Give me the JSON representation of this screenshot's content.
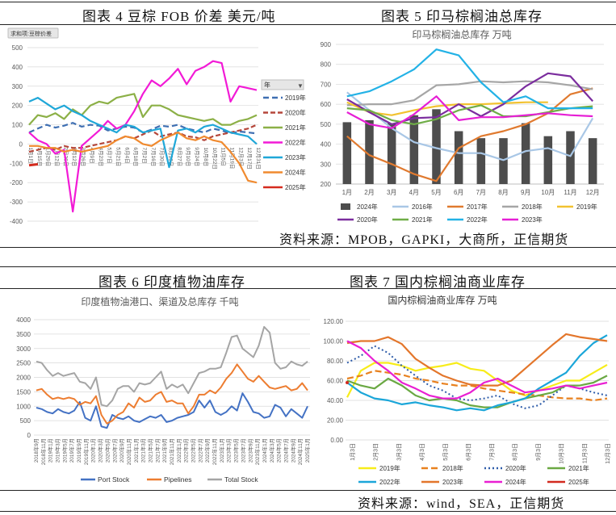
{
  "captions": {
    "fig4": "图表 4 豆棕 FOB 价差 美元/吨",
    "fig5": "图表 5 印马棕榈油总库存",
    "fig6": "图表 6 印度植物油库存",
    "fig7": "图表 7 国内棕榈油商业库存"
  },
  "sources": {
    "top": "资料来源：MPOB，GAPKI，大商所，正信期货",
    "bottom": "资料来源：wind，SEA，正信期货"
  },
  "chart_data": [
    {
      "id": "fig4",
      "type": "line",
      "title": "",
      "field_button": "求和项:豆棕价差",
      "legend_header": "年",
      "ylim": [
        -400,
        500
      ],
      "yticks": [
        "500",
        "400",
        "300",
        "200",
        "100",
        "0",
        "-100",
        "-200",
        "-300",
        "-400"
      ],
      "xlabels": [
        "1月1日",
        "1月15日",
        "1月29日",
        "2月12日",
        "2月26日",
        "3月12日",
        "3月26日",
        "4月9日",
        "4月23日",
        "5月7日",
        "5月21日",
        "6月4日",
        "6月18日",
        "7月2日",
        "7月16日",
        "7月30日",
        "8月13日",
        "8月27日",
        "9月10日",
        "9月24日",
        "10月8日",
        "10月22日",
        "11月5日",
        "11月19日",
        "12月3日",
        "12月17日",
        "12月31日"
      ],
      "series": [
        {
          "name": "2019年",
          "color": "#3f6fb2",
          "dash": "7,4",
          "values": [
            60,
            80,
            100,
            85,
            95,
            110,
            90,
            100,
            95,
            70,
            80,
            90,
            85,
            60,
            75,
            95,
            90,
            100,
            80,
            70,
            60,
            80,
            70,
            55,
            65,
            60,
            55
          ]
        },
        {
          "name": "2020年",
          "color": "#b5473b",
          "dash": "6,3",
          "values": [
            -40,
            -30,
            -20,
            -30,
            -10,
            -20,
            -20,
            -10,
            0,
            10,
            20,
            40,
            30,
            50,
            70,
            40,
            50,
            60,
            40,
            35,
            20,
            40,
            50,
            60,
            70,
            80,
            100
          ]
        },
        {
          "name": "2021年",
          "color": "#8cb047",
          "dash": "",
          "values": [
            100,
            150,
            140,
            160,
            130,
            180,
            150,
            200,
            220,
            210,
            240,
            250,
            260,
            140,
            200,
            200,
            180,
            150,
            140,
            130,
            120,
            130,
            100,
            100,
            120,
            130,
            150
          ]
        },
        {
          "name": "2022年",
          "color": "#f21ad6",
          "dash": "",
          "values": [
            60,
            20,
            0,
            -50,
            -30,
            -350,
            -10,
            30,
            70,
            120,
            80,
            100,
            170,
            260,
            330,
            300,
            340,
            390,
            310,
            380,
            400,
            430,
            420,
            220,
            300,
            290,
            280
          ]
        },
        {
          "name": "2023年",
          "color": "#1fa7d8",
          "dash": "",
          "values": [
            220,
            240,
            210,
            180,
            200,
            170,
            150,
            120,
            100,
            80,
            60,
            100,
            90,
            60,
            70,
            80,
            -120,
            70,
            80,
            60,
            90,
            100,
            80,
            60,
            50,
            40,
            0
          ]
        },
        {
          "name": "2024年",
          "color": "#f08a2f",
          "dash": "",
          "values": [
            -10,
            -10,
            -20,
            -20,
            -40,
            -30,
            -40,
            -30,
            -20,
            -10,
            20,
            40,
            30,
            0,
            -10,
            20,
            40,
            60,
            30,
            20,
            40,
            20,
            10,
            -40,
            -100,
            -190,
            -200
          ]
        },
        {
          "name": "2025年",
          "color": "#d52b1e",
          "dash": "",
          "values": [
            -110,
            -105,
            null,
            null,
            null,
            null,
            null,
            null,
            null,
            null,
            null,
            null,
            null,
            null,
            null,
            null,
            null,
            null,
            null,
            null,
            null,
            null,
            null,
            null,
            null,
            null,
            null
          ]
        }
      ]
    },
    {
      "id": "fig5",
      "type": "bar+line",
      "title": "印马棕榈油总库存 万吨",
      "ylim": [
        200,
        900
      ],
      "yticks": [
        "900",
        "800",
        "700",
        "600",
        "500",
        "400",
        "300",
        "200"
      ],
      "categories": [
        "1月",
        "2月",
        "3月",
        "4月",
        "5月",
        "6月",
        "7月",
        "8月",
        "9月",
        "10月",
        "11月",
        "12月"
      ],
      "bars": {
        "name": "2024年",
        "color": "#4d4d4d",
        "values": [
          510,
          520,
          505,
          545,
          575,
          465,
          430,
          430,
          505,
          440,
          465,
          430
        ]
      },
      "series": [
        {
          "name": "2016年",
          "color": "#a9c7e6",
          "values": [
            660,
            570,
            480,
            410,
            380,
            355,
            355,
            320,
            365,
            380,
            340,
            530
          ]
        },
        {
          "name": "2017年",
          "color": "#e07a2f",
          "values": [
            440,
            345,
            300,
            250,
            215,
            380,
            440,
            465,
            500,
            555,
            650,
            680
          ]
        },
        {
          "name": "2018年",
          "color": "#a6a6a6",
          "values": [
            595,
            600,
            600,
            620,
            695,
            700,
            715,
            710,
            715,
            710,
            695,
            675
          ]
        },
        {
          "name": "2019年",
          "color": "#f2c230",
          "values": [
            610,
            560,
            545,
            570,
            590,
            600,
            600,
            605,
            610,
            610,
            null,
            null
          ]
        },
        {
          "name": "2020年",
          "color": "#7b2d9e",
          "values": [
            625,
            560,
            500,
            530,
            535,
            600,
            540,
            600,
            690,
            755,
            740,
            615
          ]
        },
        {
          "name": "2021年",
          "color": "#6fad47",
          "values": [
            580,
            570,
            520,
            500,
            525,
            570,
            595,
            540,
            540,
            560,
            580,
            590
          ]
        },
        {
          "name": "2022年",
          "color": "#23b2e6",
          "values": [
            640,
            665,
            715,
            775,
            875,
            845,
            710,
            610,
            640,
            580,
            580,
            580
          ]
        },
        {
          "name": "2023年",
          "color": "#e61fd5",
          "values": [
            560,
            500,
            480,
            550,
            640,
            520,
            535,
            535,
            545,
            555,
            545,
            540
          ]
        }
      ]
    },
    {
      "id": "fig6",
      "type": "line",
      "title": "印度植物油港口、渠道及总库存 千吨",
      "ylim": [
        0,
        4000
      ],
      "yticks": [
        "4000",
        "3500",
        "3000",
        "2500",
        "2000",
        "1500",
        "1000",
        "500",
        "0"
      ],
      "xlabels": [
        "2018年9月",
        "2018年11月",
        "2019年1月",
        "2019年3月",
        "2019年5月",
        "2019年7月",
        "2019年9月",
        "2019年11月",
        "2020年1月",
        "2020年3月",
        "2020年5月",
        "2020年7月",
        "2020年9月",
        "2020年11月",
        "2021年1月",
        "2021年3月",
        "2021年5月",
        "2021年7月",
        "2021年9月",
        "2021年11月",
        "2022年1月",
        "2022年3月",
        "2022年5月",
        "2022年7月",
        "2022年9月",
        "2022年11月",
        "2023年1月",
        "2023年3月",
        "2023年5月",
        "2023年7月",
        "2023年9月",
        "2023年11月",
        "2024年1月",
        "2024年3月",
        "2024年5月",
        "2024年7月",
        "2024年9月",
        "2024年11月",
        "2025年1月"
      ],
      "series": [
        {
          "name": "Port Stock",
          "color": "#4472c4",
          "values": [
            950,
            900,
            800,
            750,
            900,
            800,
            750,
            850,
            1150,
            600,
            500,
            1000,
            300,
            250,
            700,
            600,
            550,
            650,
            500,
            450,
            550,
            650,
            600,
            700,
            450,
            500,
            600,
            650,
            700,
            800,
            1200,
            950,
            1200,
            800,
            700,
            800,
            1000,
            850,
            1450,
            1150,
            800,
            750,
            600,
            650,
            1050,
            950,
            650,
            900,
            750,
            600,
            1000
          ]
        },
        {
          "name": "Pipelines",
          "color": "#ed7d31",
          "values": [
            1550,
            1600,
            1400,
            1250,
            1300,
            1250,
            1300,
            1250,
            1050,
            1150,
            1100,
            1350,
            700,
            400,
            500,
            700,
            800,
            1100,
            950,
            1300,
            1150,
            1200,
            1400,
            1500,
            1150,
            1200,
            1100,
            1100,
            750,
            1000,
            1400,
            1400,
            1550,
            1450,
            1650,
            1950,
            2150,
            2450,
            2200,
            1950,
            1850,
            2050,
            1850,
            1650,
            1600,
            1650,
            1700,
            1550,
            1600,
            1800,
            1550
          ]
        },
        {
          "name": "Total Stock",
          "color": "#a5a5a5",
          "values": [
            2550,
            2500,
            2250,
            2050,
            2150,
            2050,
            2100,
            2150,
            1850,
            1800,
            1600,
            2000,
            1050,
            1000,
            1200,
            1600,
            1700,
            1700,
            1500,
            1800,
            1750,
            1800,
            2000,
            2200,
            1600,
            1750,
            1650,
            1750,
            1450,
            1800,
            2150,
            2200,
            2300,
            2300,
            2350,
            2850,
            3400,
            3450,
            3000,
            2850,
            2700,
            3100,
            3750,
            3550,
            2500,
            2300,
            2350,
            2550,
            2450,
            2400,
            2550
          ]
        }
      ]
    },
    {
      "id": "fig7",
      "type": "line",
      "title": "国内棕榈油商业库存 万吨",
      "ylim": [
        0,
        120
      ],
      "yticks": [
        "120.00",
        "100.00",
        "80.00",
        "60.00",
        "40.00",
        "20.00",
        "0.00"
      ],
      "xlabels": [
        "1月3日",
        "2月3日",
        "3月3日",
        "4月3日",
        "5月3日",
        "6月3日",
        "7月3日",
        "8月3日",
        "9月3日",
        "10月3日",
        "11月3日",
        "12月3日"
      ],
      "series": [
        {
          "name": "2019年",
          "color": "#f7ec1a",
          "dash": "",
          "values": [
            43,
            70,
            78,
            78,
            75,
            70,
            73,
            75,
            78,
            72,
            70,
            60,
            50,
            45,
            50,
            55,
            60,
            60,
            68,
            76
          ]
        },
        {
          "name": "2018年",
          "color": "#e8811f",
          "dash": "8,4",
          "values": [
            62,
            65,
            70,
            68,
            66,
            62,
            60,
            57,
            55,
            55,
            52,
            50,
            48,
            46,
            45,
            43,
            42,
            42,
            40,
            42
          ]
        },
        {
          "name": "2020年",
          "color": "#2e5ca9",
          "dash": "2,3",
          "values": [
            78,
            85,
            95,
            88,
            75,
            65,
            55,
            50,
            42,
            40,
            42,
            45,
            37,
            32,
            35,
            45,
            55,
            52,
            48,
            45
          ]
        },
        {
          "name": "2021年",
          "color": "#6aa843",
          "dash": "",
          "values": [
            60,
            55,
            52,
            62,
            55,
            45,
            40,
            42,
            40,
            35,
            33,
            33,
            38,
            42,
            45,
            48,
            55,
            55,
            58,
            65
          ]
        },
        {
          "name": "2022年",
          "color": "#1ba6d9",
          "dash": "",
          "values": [
            58,
            48,
            42,
            40,
            36,
            38,
            35,
            33,
            30,
            32,
            30,
            35,
            38,
            42,
            52,
            60,
            68,
            85,
            98,
            106
          ]
        },
        {
          "name": "2023年",
          "color": "#e3762b",
          "dash": "",
          "values": [
            98,
            100,
            100,
            104,
            97,
            82,
            73,
            65,
            60,
            56,
            55,
            55,
            60,
            72,
            84,
            96,
            107,
            104,
            102,
            100
          ]
        },
        {
          "name": "2024年",
          "color": "#e91fd2",
          "dash": "",
          "values": [
            100,
            93,
            80,
            70,
            58,
            52,
            45,
            42,
            42,
            48,
            58,
            62,
            55,
            48,
            50,
            52,
            55,
            52,
            55,
            58
          ]
        },
        {
          "name": "2025年",
          "color": "#d22a1f",
          "dash": "",
          "values": [
            58,
            null,
            null,
            null,
            null,
            null,
            null,
            null,
            null,
            null,
            null,
            null,
            null,
            null,
            null,
            null,
            null,
            null,
            null,
            null
          ]
        }
      ]
    }
  ]
}
